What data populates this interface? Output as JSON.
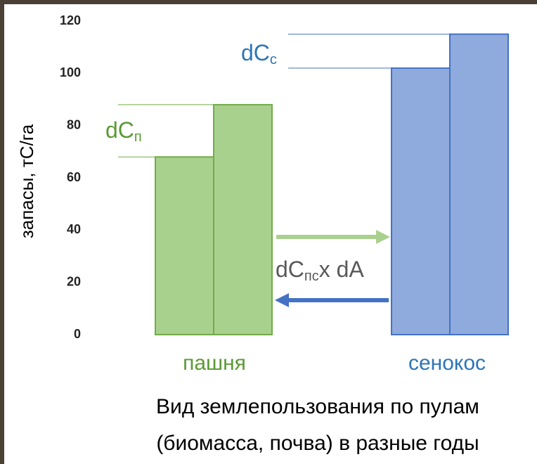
{
  "chart_data": {
    "type": "bar",
    "ylabel": "запасы, тС/га",
    "xlabel": [
      "Вид землепользования по пулам",
      "(биомасса, почва) в разные годы"
    ],
    "ylim": [
      0,
      120
    ],
    "yticks": [
      0,
      20,
      40,
      60,
      80,
      100,
      120
    ],
    "groups": [
      {
        "label": "пашня",
        "color": "#a9d18e",
        "edge": "#70ad47",
        "text_color": "#5b9a35",
        "values": [
          68,
          88
        ]
      },
      {
        "label": "сенокос",
        "color": "#8faadc",
        "edge": "#4472c4",
        "text_color": "#2e75b6",
        "values": [
          102,
          115
        ]
      }
    ],
    "annotations": [
      {
        "text": "dC",
        "sub": "с",
        "color": "#2e75b6"
      },
      {
        "text": "dC",
        "sub": "п",
        "color": "#5b9a35"
      },
      {
        "text": "dC",
        "sub": "пс",
        "after": "x dA",
        "color": "#595959"
      }
    ]
  }
}
